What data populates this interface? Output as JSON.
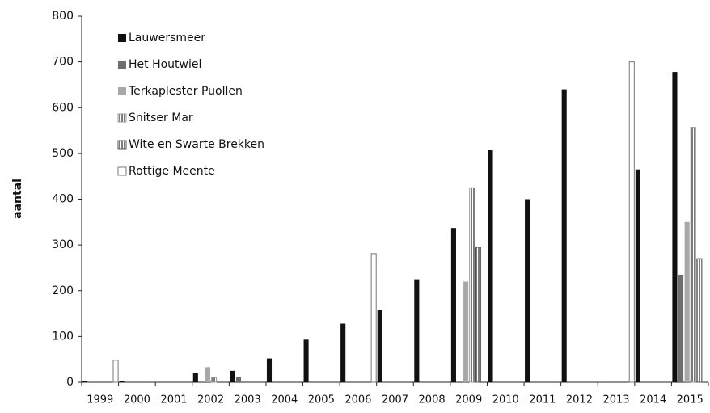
{
  "chart_data": {
    "type": "bar",
    "y_label": "aantal",
    "categories": [
      "1999",
      "2000",
      "2001",
      "2002",
      "2003",
      "2004",
      "2005",
      "2006",
      "2007",
      "2008",
      "2009",
      "2010",
      "2011",
      "2012",
      "2013",
      "2014",
      "2015"
    ],
    "series": [
      {
        "name": "Lauwersmeer",
        "color": "#111111",
        "hatch": false,
        "values": [
          2,
          3,
          null,
          20,
          25,
          52,
          93,
          128,
          158,
          225,
          337,
          508,
          400,
          640,
          null,
          465,
          678
        ]
      },
      {
        "name": "Het Houtwiel",
        "color": "#6e6e6e",
        "hatch": false,
        "values": [
          null,
          null,
          null,
          null,
          12,
          null,
          null,
          null,
          null,
          null,
          null,
          null,
          null,
          null,
          null,
          null,
          235
        ]
      },
      {
        "name": "Terkaplester Puollen",
        "color": "#a8a8a8",
        "hatch": false,
        "values": [
          null,
          null,
          null,
          33,
          null,
          null,
          null,
          null,
          null,
          null,
          220,
          null,
          null,
          null,
          null,
          null,
          350
        ]
      },
      {
        "name": "Snitser Mar",
        "color": "#9a9a9a",
        "hatch": true,
        "values": [
          null,
          null,
          null,
          10,
          null,
          null,
          null,
          null,
          null,
          null,
          425,
          null,
          null,
          null,
          null,
          null,
          557
        ]
      },
      {
        "name": "Wite en Swarte Brekken",
        "color": "#555555",
        "hatch": true,
        "values": [
          null,
          null,
          null,
          null,
          null,
          null,
          null,
          null,
          null,
          null,
          295,
          null,
          null,
          null,
          null,
          null,
          270
        ]
      },
      {
        "name": "Rottige Meente",
        "color": "#ffffff",
        "hatch": false,
        "values": [
          48,
          null,
          null,
          null,
          null,
          null,
          null,
          281,
          null,
          null,
          null,
          null,
          null,
          null,
          700,
          null,
          null
        ]
      }
    ],
    "ylim": [
      0,
      800
    ],
    "yticks": [
      0,
      100,
      200,
      300,
      400,
      500,
      600,
      700,
      800
    ],
    "legend": "top-left"
  }
}
